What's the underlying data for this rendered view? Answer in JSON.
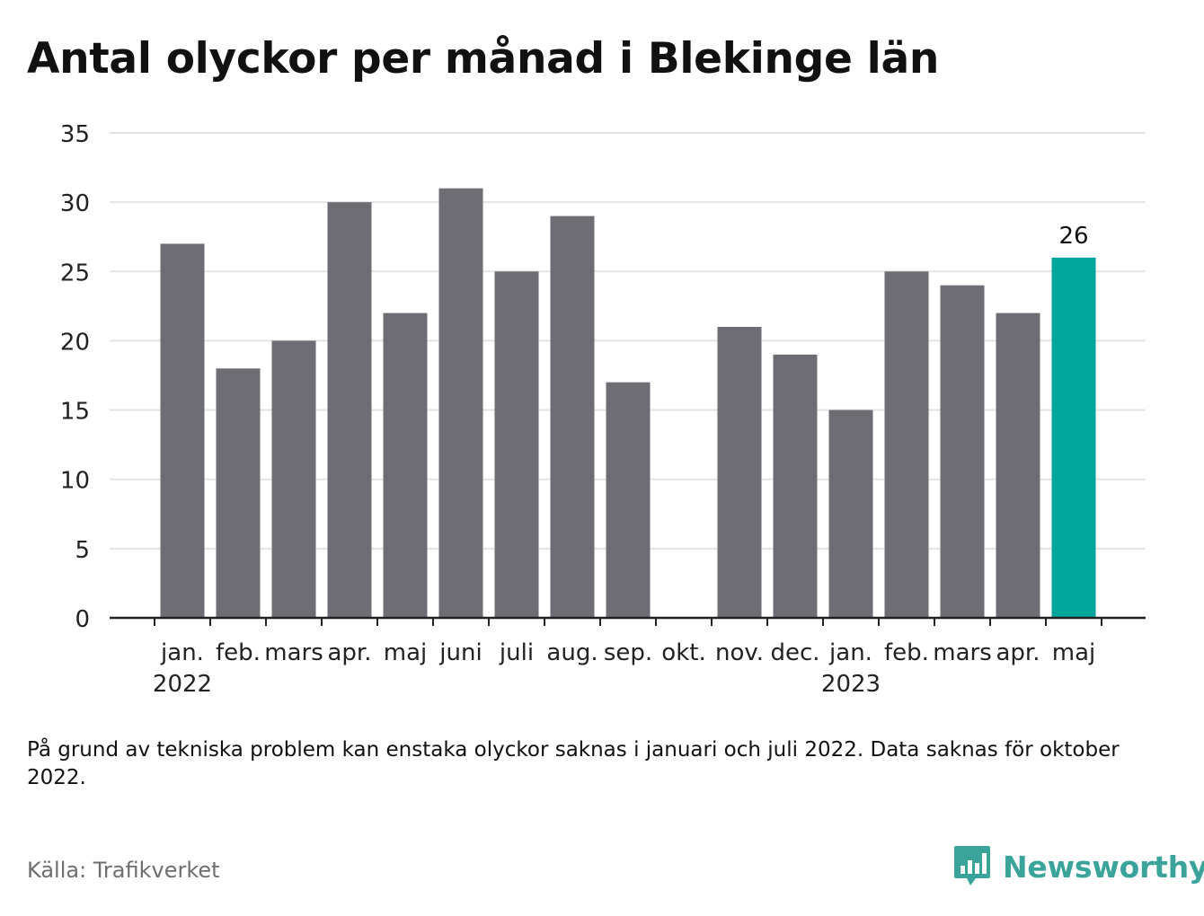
{
  "title": "Antal olyckor per månad i Blekinge län",
  "note": "På grund av tekniska problem kan enstaka olyckor saknas i januari och juli 2022. Data saknas för oktober 2022.",
  "source": "Källa: Trafikverket",
  "brand": {
    "name": "Newsworthy",
    "icon": "bar-chart-speech-bubble-icon",
    "color": "#3aa39a"
  },
  "colors": {
    "bar": "#6e6d74",
    "highlight": "#00a69c",
    "grid": "#e3e3e3",
    "axis": "#222222"
  },
  "chart_data": {
    "type": "bar",
    "title": "Antal olyckor per månad i Blekinge län",
    "categories": [
      "jan.",
      "feb.",
      "mars",
      "apr.",
      "maj",
      "juni",
      "juli",
      "aug.",
      "sep.",
      "okt.",
      "nov.",
      "dec.",
      "jan.",
      "feb.",
      "mars",
      "apr.",
      "maj"
    ],
    "year_labels": [
      "2022",
      "",
      "",
      "",
      "",
      "",
      "",
      "",
      "",
      "",
      "",
      "",
      "2023",
      "",
      "",
      "",
      ""
    ],
    "values": [
      27,
      18,
      20,
      30,
      22,
      31,
      25,
      29,
      17,
      null,
      21,
      19,
      15,
      25,
      24,
      22,
      26
    ],
    "highlight_index": 16,
    "value_labels": [
      {
        "index": 16,
        "text": "26"
      }
    ],
    "yticks": [
      "0",
      "5",
      "10",
      "15",
      "20",
      "25",
      "30",
      "35"
    ],
    "ylim": [
      0,
      35
    ],
    "grid": true,
    "legend": "none"
  }
}
